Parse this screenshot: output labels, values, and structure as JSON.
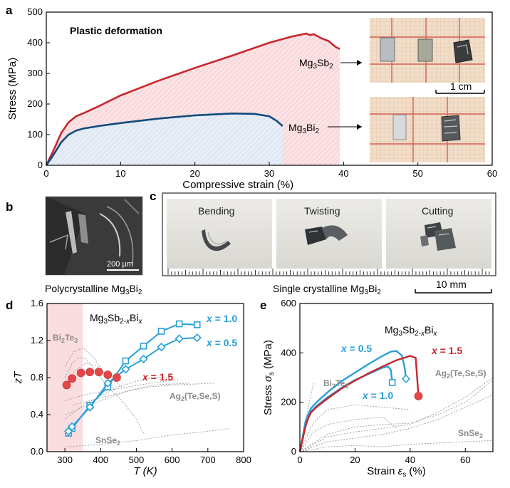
{
  "panels": {
    "a": {
      "label": "a",
      "title": "Plastic deformation",
      "xlabel": "Compressive strain (%)",
      "ylabel": "Stress (MPa)",
      "scale_bar": "1 cm",
      "series_labels": {
        "sb": "Mg3Sb2",
        "bi": "Mg3Bi2"
      }
    },
    "b": {
      "label": "b",
      "scale_bar": "200 µm",
      "caption": "Polycrystalline Mg3Bi2"
    },
    "c": {
      "label": "c",
      "photos": [
        "Bending",
        "Twisting",
        "Cutting"
      ],
      "caption": "Single crystalline Mg3Bi2",
      "scale_bar": "10 mm"
    },
    "d": {
      "label": "d",
      "title": "Mg3Sb2-xBix",
      "xlabel": "T (K)",
      "ylabel": "zT",
      "ref_labels": [
        "Bi2Te3",
        "Ag2(Te,Se,S)",
        "SnSe2"
      ],
      "series_labels": [
        "x = 1.0",
        "x = 0.5",
        "x = 1.5"
      ]
    },
    "e": {
      "label": "e",
      "title": "Mg3Sb2-xBix",
      "xlabel": "Strain εs (%)",
      "ylabel": "Stress σs (MPa)",
      "ref_labels": [
        "Bi2Te3",
        "Ag2(Te,Se,S)",
        "SnSe2"
      ],
      "series_labels": [
        "x = 0.5",
        "x = 1.0",
        "x = 1.5"
      ]
    }
  },
  "colors": {
    "red": "#c8262c",
    "navy": "#134a7c",
    "cyan": "#2a9fd8",
    "marker_red": "#e34747",
    "grey": "#9a9a9a",
    "pink": "#f9d4d7"
  },
  "chart_data": [
    {
      "type": "area",
      "panel": "a",
      "xlim": [
        0,
        60
      ],
      "ylim": [
        0,
        500
      ],
      "xticks": [
        0,
        10,
        20,
        30,
        40,
        50,
        60
      ],
      "yticks": [
        0,
        100,
        200,
        300,
        400,
        500
      ],
      "series": [
        {
          "name": "Mg3Sb2",
          "x": [
            0,
            1,
            2,
            3,
            4,
            5,
            7,
            10,
            15,
            20,
            25,
            30,
            33,
            35,
            35.5,
            36,
            37,
            38,
            38.5,
            39,
            39.5
          ],
          "y": [
            0,
            50,
            105,
            140,
            160,
            170,
            192,
            228,
            275,
            318,
            358,
            400,
            420,
            430,
            425,
            428,
            415,
            405,
            395,
            385,
            380
          ]
        },
        {
          "name": "Mg3Bi2",
          "x": [
            0,
            1,
            2,
            3,
            4,
            5,
            7,
            10,
            15,
            20,
            25,
            28,
            30,
            31,
            31.8
          ],
          "y": [
            0,
            35,
            75,
            100,
            113,
            120,
            128,
            138,
            152,
            163,
            169,
            168,
            160,
            145,
            128
          ]
        }
      ]
    },
    {
      "type": "line",
      "panel": "d",
      "xlim": [
        250,
        800
      ],
      "ylim": [
        0,
        1.6
      ],
      "xticks": [
        300,
        400,
        500,
        600,
        700,
        800
      ],
      "yticks": [
        0.0,
        0.4,
        0.8,
        1.2,
        1.6
      ],
      "highlight_x": [
        250,
        350
      ],
      "series": [
        {
          "name": "x = 1.0",
          "marker": "square",
          "x": [
            310,
            320,
            370,
            420,
            470,
            520,
            570,
            620,
            670
          ],
          "y": [
            0.2,
            0.25,
            0.5,
            0.7,
            0.98,
            1.14,
            1.3,
            1.38,
            1.37
          ]
        },
        {
          "name": "x = 0.5",
          "marker": "diamond",
          "x": [
            310,
            320,
            370,
            420,
            470,
            520,
            570,
            620,
            670
          ],
          "y": [
            0.22,
            0.27,
            0.48,
            0.74,
            0.89,
            1.0,
            1.13,
            1.22,
            1.23
          ]
        },
        {
          "name": "x = 1.5",
          "marker": "circle",
          "x": [
            305,
            320,
            345,
            370,
            395,
            420,
            445
          ],
          "y": [
            0.72,
            0.79,
            0.85,
            0.86,
            0.86,
            0.83,
            0.8
          ]
        }
      ]
    },
    {
      "type": "line",
      "panel": "e",
      "xlim": [
        0,
        70
      ],
      "ylim": [
        0,
        600
      ],
      "xticks": [
        0,
        20,
        40,
        60
      ],
      "yticks": [
        0,
        200,
        400,
        600
      ],
      "series": [
        {
          "name": "x = 0.5",
          "marker": "diamond-end",
          "x": [
            0,
            1,
            2,
            3,
            4,
            6,
            10,
            15,
            20,
            25,
            30,
            33,
            35,
            36,
            37,
            38,
            38.5
          ],
          "y": [
            0,
            60,
            120,
            150,
            175,
            200,
            240,
            285,
            320,
            355,
            388,
            405,
            408,
            398,
            390,
            340,
            295
          ]
        },
        {
          "name": "x = 1.0",
          "marker": "square-end",
          "x": [
            0,
            1,
            2,
            3,
            4,
            6,
            10,
            15,
            20,
            25,
            30,
            32,
            33,
            33.5
          ],
          "y": [
            0,
            55,
            110,
            140,
            162,
            185,
            220,
            258,
            290,
            315,
            340,
            345,
            330,
            280
          ]
        },
        {
          "name": "x = 1.5",
          "marker": "circle-end",
          "x": [
            0,
            1,
            2,
            3,
            4,
            6,
            10,
            15,
            20,
            25,
            30,
            35,
            40,
            42,
            43
          ],
          "y": [
            0,
            50,
            100,
            135,
            158,
            180,
            215,
            255,
            288,
            318,
            345,
            370,
            388,
            380,
            225
          ]
        }
      ]
    }
  ]
}
